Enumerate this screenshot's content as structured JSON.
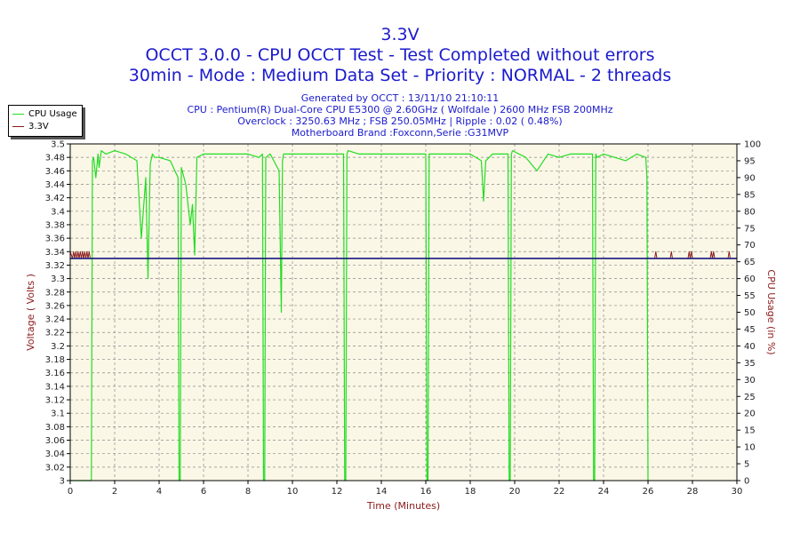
{
  "header": {
    "title": "3.3V",
    "subtitle1": "OCCT 3.0.0 - CPU OCCT Test - Test Completed without errors",
    "subtitle2": "30min - Mode : Medium Data Set - Priority : NORMAL - 2 threads"
  },
  "info": {
    "line1": "Generated by OCCT : 13/11/10 21:10:11",
    "line2": "CPU : Pentium(R) Dual-Core CPU E5300 @ 2.60GHz ( Wolfdale ) 2600 MHz FSB 200MHz",
    "line3": "Overclock : 3250.63 MHz ; FSB 250.05MHz | Ripple : 0.02 ( 0.48%)",
    "line4": "Motherboard Brand :Foxconn,Serie :G31MVP"
  },
  "colors": {
    "cpu": "#22dd22",
    "voltage": "#8b1a1a",
    "voltage_line": "#1a1a80",
    "plot_bg": "#fbf7e6",
    "title": "#1a1acc"
  },
  "chart_data": {
    "type": "line",
    "xlabel": "Time (Minutes)",
    "ylabel_left": "Voltage ( Volts )",
    "ylabel_right": "CPU Usage (in %)",
    "xlim": [
      0,
      30
    ],
    "ylim_left": [
      3.0,
      3.5
    ],
    "ylim_right": [
      0,
      100
    ],
    "x_ticks": [
      0,
      2,
      4,
      6,
      8,
      10,
      12,
      14,
      16,
      18,
      20,
      22,
      24,
      26,
      28,
      30
    ],
    "y_ticks_left": [
      3,
      3.02,
      3.04,
      3.06,
      3.08,
      3.1,
      3.12,
      3.14,
      3.16,
      3.18,
      3.2,
      3.22,
      3.24,
      3.26,
      3.28,
      3.3,
      3.32,
      3.34,
      3.36,
      3.38,
      3.4,
      3.42,
      3.44,
      3.46,
      3.48,
      3.5
    ],
    "y_ticks_right": [
      0,
      5,
      10,
      15,
      20,
      25,
      30,
      35,
      40,
      45,
      50,
      55,
      60,
      65,
      70,
      75,
      80,
      85,
      90,
      95,
      100
    ],
    "grid": true,
    "legend_position": "top-left",
    "series": [
      {
        "name": "CPU Usage",
        "axis": "right",
        "x": [
          0,
          0.95,
          1.0,
          1.05,
          1.15,
          1.25,
          1.3,
          1.4,
          1.6,
          2.0,
          2.5,
          3.0,
          3.2,
          3.4,
          3.5,
          3.6,
          3.7,
          3.8,
          4.0,
          4.5,
          4.85,
          4.9,
          4.95,
          5.0,
          5.2,
          5.4,
          5.5,
          5.6,
          5.7,
          6.0,
          6.5,
          7.0,
          7.5,
          8.0,
          8.5,
          8.65,
          8.7,
          8.75,
          8.8,
          9.0,
          9.4,
          9.5,
          9.55,
          9.6,
          10.0,
          11.0,
          12.3,
          12.35,
          12.4,
          12.45,
          12.5,
          13.0,
          14.0,
          15.0,
          16.0,
          16.05,
          16.1,
          16.15,
          16.2,
          17.0,
          18.0,
          18.5,
          18.6,
          18.7,
          19.0,
          19.7,
          19.75,
          19.8,
          19.85,
          19.9,
          20.5,
          21.0,
          21.5,
          22.0,
          22.5,
          23.0,
          23.5,
          23.55,
          23.6,
          23.65,
          23.7,
          24.0,
          24.5,
          25.0,
          25.5,
          25.9,
          25.95,
          26.0,
          26.05
        ],
        "values": [
          0,
          0,
          95,
          96,
          90,
          97,
          93,
          98,
          97,
          98,
          97,
          95,
          72,
          90,
          60,
          94,
          97,
          96,
          96,
          95,
          90,
          0,
          0,
          93,
          88,
          76,
          82,
          67,
          96,
          97,
          97,
          97,
          97,
          97,
          96,
          97,
          0,
          0,
          96,
          97,
          92,
          50,
          95,
          97,
          97,
          97,
          97,
          0,
          0,
          97,
          98,
          97,
          97,
          97,
          97,
          0,
          0,
          97,
          97,
          97,
          97,
          95,
          83,
          95,
          97,
          97,
          0,
          0,
          97,
          98,
          96,
          92,
          97,
          96,
          97,
          97,
          97,
          0,
          0,
          97,
          96,
          97,
          96,
          95,
          97,
          96,
          90,
          0,
          0
        ]
      },
      {
        "name": "3.3V",
        "axis": "left",
        "x": [
          0,
          0.1,
          0.15,
          0.2,
          0.25,
          0.3,
          0.35,
          0.4,
          0.45,
          0.5,
          0.55,
          0.6,
          0.65,
          0.7,
          0.75,
          0.8,
          0.85,
          0.9,
          1.0,
          26.0,
          26.3,
          26.35,
          26.4,
          27.0,
          27.05,
          27.1,
          27.8,
          27.85,
          27.9,
          27.95,
          28.0,
          28.8,
          28.85,
          28.9,
          28.95,
          29.0,
          29.6,
          29.65,
          29.7,
          30.0
        ],
        "values": [
          3.34,
          3.33,
          3.34,
          3.33,
          3.34,
          3.33,
          3.34,
          3.33,
          3.34,
          3.33,
          3.34,
          3.33,
          3.34,
          3.33,
          3.34,
          3.33,
          3.34,
          3.33,
          3.33,
          3.33,
          3.33,
          3.34,
          3.33,
          3.33,
          3.34,
          3.33,
          3.33,
          3.34,
          3.33,
          3.34,
          3.33,
          3.33,
          3.34,
          3.33,
          3.34,
          3.33,
          3.33,
          3.34,
          3.33,
          3.33
        ]
      },
      {
        "name": "",
        "axis": "left",
        "x": [
          0,
          30
        ],
        "values": [
          3.33,
          3.33
        ]
      }
    ]
  }
}
